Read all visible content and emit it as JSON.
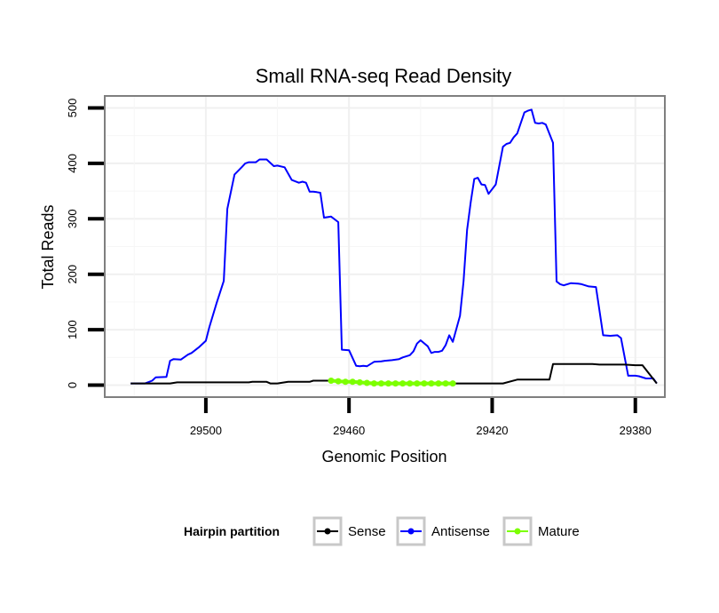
{
  "chart_data": {
    "type": "line",
    "title": "Small RNA-seq Read Density",
    "xlabel": "Genomic Position",
    "ylabel": "Total Reads",
    "xlim": [
      29528,
      29372
    ],
    "ylim": [
      -20,
      520
    ],
    "x_reversed": true,
    "xticks": [
      29500,
      29460,
      29420,
      29380
    ],
    "xtick_labels": [
      "29500",
      "29460",
      "29420",
      "29380"
    ],
    "yticks": [
      0,
      100,
      200,
      300,
      400,
      500
    ],
    "ytick_labels": [
      "0",
      "100",
      "200",
      "300",
      "400",
      "500"
    ],
    "grid": true,
    "legend": {
      "title": "Hairpin partition",
      "position": "bottom",
      "entries": [
        "Sense",
        "Antisense",
        "Mature"
      ]
    },
    "series": [
      {
        "name": "Antisense",
        "color": "#0000ff",
        "x": [
          29521,
          29517,
          29515,
          29514,
          29511,
          29510,
          29509,
          29507,
          29505,
          29504,
          29502,
          29500,
          29499,
          29497,
          29495,
          29494,
          29492,
          29490,
          29489,
          29488,
          29486,
          29485,
          29483,
          29481,
          29480,
          29478,
          29476,
          29474,
          29473,
          29472,
          29471,
          29470,
          29469,
          29468,
          29467,
          29465,
          29463,
          29462,
          29460,
          29458,
          29457,
          29456,
          29455,
          29453,
          29451,
          29450,
          29448,
          29446,
          29445,
          29443,
          29442,
          29441,
          29440,
          29438,
          29437,
          29436,
          29435,
          29434,
          29433,
          29432,
          29431,
          29429,
          29428,
          29427,
          29426,
          29425,
          29424,
          29423,
          29422,
          29421,
          29419,
          29417,
          29416,
          29415,
          29414,
          29413,
          29411,
          29410,
          29409,
          29408,
          29407,
          29406,
          29405,
          29403,
          29402,
          29401,
          29400,
          29398,
          29396,
          29395,
          29393,
          29391,
          29389
        ],
        "y": [
          3,
          3,
          8,
          14,
          15,
          44,
          47,
          46,
          55,
          58,
          68,
          80,
          105,
          148,
          188,
          318,
          380,
          393,
          400,
          402,
          402,
          407,
          407,
          395,
          396,
          393,
          370,
          365,
          367,
          365,
          349,
          349,
          348,
          347,
          302,
          304,
          294,
          64,
          63,
          35,
          34,
          35,
          34,
          42,
          43,
          44,
          45,
          47,
          50,
          54,
          61,
          75,
          81,
          70,
          58,
          60,
          60,
          62,
          72,
          90,
          78,
          125,
          187,
          280,
          330,
          372,
          374,
          362,
          361,
          345,
          362,
          430,
          435,
          437,
          447,
          454,
          492,
          495,
          497,
          473,
          472,
          473,
          470,
          437,
          187,
          182,
          180,
          184,
          183,
          182,
          178,
          177,
          90
        ],
        "x_tail": [
          29389,
          29387,
          29385,
          29384,
          29382,
          29380,
          29379,
          29377,
          29375,
          29374
        ],
        "y_tail": [
          90,
          89,
          90,
          85,
          17,
          17,
          16,
          12,
          12,
          3
        ]
      },
      {
        "name": "Sense",
        "color": "#000000",
        "x": [
          29521,
          29510,
          29508,
          29500,
          29496,
          29492,
          29491,
          29488,
          29487,
          29483,
          29482,
          29480,
          29477,
          29471,
          29470,
          29468,
          29464,
          29462,
          29459,
          29455,
          29453,
          29451,
          29447,
          29446,
          29443,
          29440,
          29437,
          29432,
          29431,
          29426,
          29424,
          29420,
          29418,
          29417,
          29413,
          29411,
          29407,
          29404,
          29403,
          29400,
          29397,
          29394,
          29392,
          29390,
          29386,
          29383,
          29380,
          29378,
          29374
        ],
        "y": [
          3,
          3,
          5,
          5,
          5,
          5,
          5,
          5,
          6,
          6,
          3,
          3,
          6,
          6,
          8,
          8,
          8,
          8,
          6,
          3,
          3,
          3,
          3,
          3,
          3,
          3,
          3,
          3,
          3,
          3,
          3,
          3,
          3,
          3,
          10,
          10,
          10,
          10,
          38,
          38,
          38,
          38,
          38,
          37,
          37,
          37,
          36,
          36,
          3
        ]
      },
      {
        "name": "Mature",
        "color": "#7cff00",
        "x": [
          29465,
          29463,
          29461,
          29459,
          29457,
          29455,
          29453,
          29451,
          29449,
          29447,
          29445,
          29443,
          29441,
          29439,
          29437,
          29435,
          29433,
          29431
        ],
        "y": [
          8,
          7,
          6,
          6,
          5,
          4,
          3,
          3,
          3,
          3,
          3,
          3,
          3,
          3,
          3,
          3,
          3,
          3
        ]
      }
    ]
  }
}
